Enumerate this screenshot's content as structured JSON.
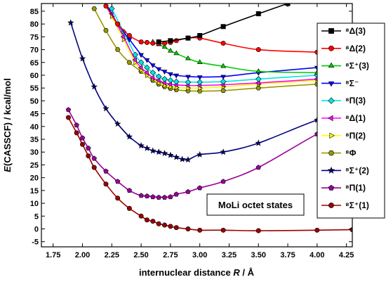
{
  "chart_data": {
    "type": "line",
    "xlabel": "internuclear distance R / Å",
    "xlabel_parts": [
      "internuclear distance ",
      "R",
      " / Å"
    ],
    "ylabel": "E(CASSCF) / kcal/mol",
    "ylabel_parts": [
      "E",
      "(CASSCF) / kcal/mol"
    ],
    "xlim": [
      1.65,
      4.3
    ],
    "ylim": [
      -7,
      88
    ],
    "xticks": [
      "1.75",
      "2.00",
      "2.25",
      "2.50",
      "2.75",
      "3.00",
      "3.25",
      "3.50",
      "3.75",
      "4.00",
      "4.25"
    ],
    "yticks": [
      "-5",
      "0",
      "5",
      "10",
      "15",
      "20",
      "25",
      "30",
      "35",
      "40",
      "45",
      "50",
      "55",
      "60",
      "65",
      "70",
      "75",
      "80",
      "85"
    ],
    "annotation": "MoLi octet states",
    "grid": false,
    "legend_position": "right",
    "series": [
      {
        "name": "⁸Δ(3)",
        "marker": "square",
        "color": "#000000",
        "x": [
          2.65,
          2.75,
          2.9,
          3.0,
          3.2,
          3.5,
          3.75
        ],
        "y": [
          73.0,
          73.5,
          74.5,
          75.5,
          79.0,
          84.0,
          88.0
        ]
      },
      {
        "name": "⁸Δ(2)",
        "marker": "circle",
        "color": "#ff0000",
        "x": [
          2.2,
          2.3,
          2.4,
          2.5,
          2.55,
          2.6,
          2.65,
          2.7,
          2.75,
          2.8,
          2.9,
          3.0,
          3.2,
          3.5,
          4.0,
          4.3
        ],
        "y": [
          87.0,
          80.0,
          75.5,
          73.0,
          72.8,
          72.5,
          72.4,
          72.5,
          72.8,
          73.5,
          74.5,
          74.5,
          72.5,
          70.0,
          69.0,
          68.5
        ]
      },
      {
        "name": "⁸Σ⁺(3)",
        "marker": "triangle-up",
        "color": "#00cc00",
        "x": [
          2.6,
          2.65,
          2.7,
          2.75,
          2.8,
          2.9,
          3.0,
          3.2,
          3.5,
          4.0,
          4.3
        ],
        "y": [
          73.0,
          72.0,
          71.0,
          69.5,
          68.5,
          66.5,
          65.0,
          63.5,
          61.5,
          61.0,
          61.0
        ]
      },
      {
        "name": "⁸Σ⁻",
        "marker": "triangle-down",
        "color": "#0000ff",
        "x": [
          2.2,
          2.3,
          2.4,
          2.5,
          2.55,
          2.6,
          2.65,
          2.7,
          2.75,
          2.8,
          2.9,
          3.0,
          3.2,
          3.5,
          4.0,
          4.3
        ],
        "y": [
          88.0,
          80.0,
          74.0,
          68.0,
          66.0,
          64.0,
          62.5,
          61.5,
          60.5,
          60.0,
          59.5,
          59.3,
          59.5,
          61.0,
          63.0,
          64.5
        ]
      },
      {
        "name": "⁸Π(3)",
        "marker": "diamond",
        "color": "#00e6e6",
        "x": [
          2.25,
          2.35,
          2.45,
          2.5,
          2.55,
          2.6,
          2.65,
          2.7,
          2.75,
          2.8,
          2.9,
          3.0,
          3.2,
          3.5,
          4.0,
          4.3
        ],
        "y": [
          86.0,
          77.0,
          68.0,
          65.0,
          63.0,
          61.0,
          59.5,
          58.5,
          58.0,
          57.5,
          57.3,
          57.3,
          57.5,
          58.5,
          60.0,
          61.0
        ]
      },
      {
        "name": "⁸Δ(1)",
        "marker": "triangle-left",
        "color": "#ff00ff",
        "x": [
          2.25,
          2.35,
          2.45,
          2.5,
          2.55,
          2.6,
          2.65,
          2.7,
          2.75,
          2.8,
          2.9,
          3.0,
          3.2,
          3.5,
          4.0,
          4.3
        ],
        "y": [
          84.0,
          75.0,
          66.0,
          63.0,
          61.0,
          59.0,
          58.0,
          57.0,
          56.5,
          56.2,
          56.0,
          56.0,
          56.3,
          57.0,
          58.5,
          59.5
        ]
      },
      {
        "name": "⁸Π(2)",
        "marker": "triangle-right",
        "color": "#ffff00",
        "x": [
          2.25,
          2.35,
          2.45,
          2.5,
          2.55,
          2.6,
          2.65,
          2.7,
          2.75,
          2.8,
          2.9,
          3.0,
          3.2,
          3.5,
          4.0,
          4.3
        ],
        "y": [
          83.0,
          74.0,
          65.0,
          62.0,
          60.0,
          58.5,
          57.0,
          56.0,
          55.5,
          55.2,
          55.0,
          55.0,
          55.5,
          56.5,
          58.0,
          59.0
        ]
      },
      {
        "name": "⁸Φ",
        "marker": "hexagon",
        "color": "#999900",
        "x": [
          2.1,
          2.2,
          2.3,
          2.4,
          2.5,
          2.6,
          2.65,
          2.7,
          2.75,
          2.8,
          2.9,
          3.0,
          3.2,
          3.5,
          4.0,
          4.3
        ],
        "y": [
          86.0,
          77.5,
          70.0,
          65.0,
          61.5,
          58.0,
          56.5,
          55.5,
          54.8,
          54.3,
          53.9,
          53.8,
          54.0,
          55.0,
          56.5,
          57.0
        ]
      },
      {
        "name": "⁸Σ⁺(2)",
        "marker": "star",
        "color": "#000080",
        "x": [
          1.9,
          2.0,
          2.1,
          2.2,
          2.3,
          2.4,
          2.5,
          2.55,
          2.6,
          2.65,
          2.7,
          2.75,
          2.8,
          2.85,
          2.9,
          3.0,
          3.2,
          3.5,
          4.0,
          4.3
        ],
        "y": [
          80.5,
          66.5,
          55.5,
          47.0,
          41.0,
          36.0,
          32.5,
          31.5,
          30.5,
          30.0,
          29.5,
          28.8,
          28.0,
          27.2,
          27.0,
          29.0,
          30.0,
          33.5,
          42.5,
          45.5
        ]
      },
      {
        "name": "⁸Π(1)",
        "marker": "pentagon",
        "color": "#990099",
        "x": [
          1.88,
          1.95,
          2.0,
          2.05,
          2.1,
          2.2,
          2.3,
          2.4,
          2.5,
          2.55,
          2.6,
          2.65,
          2.7,
          2.75,
          2.8,
          2.9,
          3.0,
          3.2,
          3.5,
          4.0,
          4.3
        ],
        "y": [
          46.5,
          40.5,
          35.5,
          31.5,
          27.5,
          22.5,
          18.5,
          15.0,
          13.0,
          12.8,
          12.5,
          12.3,
          12.3,
          12.5,
          13.5,
          14.5,
          16.0,
          18.5,
          24.0,
          37.0,
          43.0
        ]
      },
      {
        "name": "⁸Σ⁺(1)",
        "marker": "circle",
        "color": "#990000",
        "x": [
          1.88,
          1.95,
          2.0,
          2.05,
          2.1,
          2.2,
          2.3,
          2.4,
          2.5,
          2.55,
          2.6,
          2.65,
          2.7,
          2.75,
          2.8,
          2.9,
          3.0,
          3.2,
          3.5,
          4.0,
          4.3
        ],
        "y": [
          43.5,
          37.5,
          33.0,
          28.5,
          24.0,
          17.5,
          12.0,
          8.0,
          5.0,
          3.5,
          3.0,
          2.0,
          1.5,
          1.0,
          0.5,
          0.0,
          -0.5,
          -0.5,
          -0.7,
          -0.5,
          -0.3
        ]
      }
    ]
  }
}
